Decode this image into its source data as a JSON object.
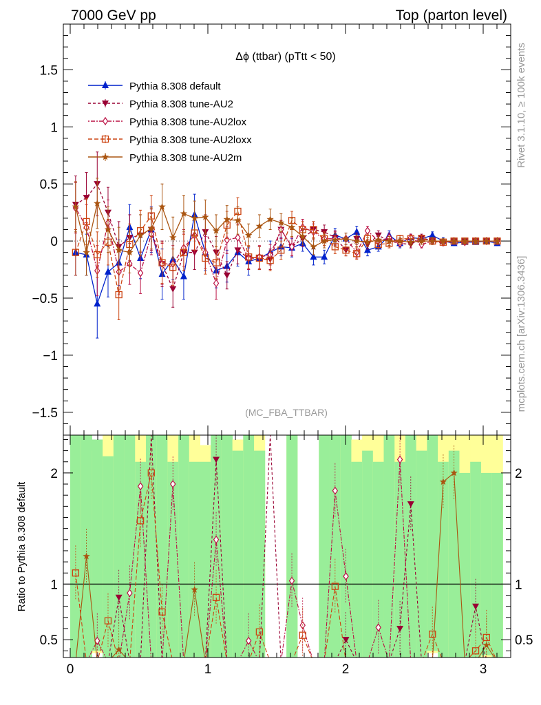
{
  "header": {
    "left": "7000 GeV pp",
    "right": "Top (parton level)"
  },
  "side_labels": {
    "rivet": "Rivet 3.1.10, ≥ 100k events",
    "mcplots": "mcplots.cern.ch [arXiv:1306.3436]"
  },
  "colors": {
    "default": "#0022cc",
    "au2": "#990033",
    "au2lox": "#bb1144",
    "au2loxx": "#cc4411",
    "au2m": "#aa5511",
    "band_yellow": "#ffff99",
    "band_green": "#99ee99"
  },
  "chart_data": [
    {
      "type": "line",
      "title": "Δϕ (ttbar) (pTtt < 50)",
      "watermark": "(MC_FBA_TTBAR)",
      "xlim": [
        -0.05,
        3.2
      ],
      "ylim": [
        -1.7,
        1.9
      ],
      "yticks": [
        -1.5,
        -1,
        -0.5,
        0,
        0.5,
        1,
        1.5
      ],
      "ytick_labels": [
        "−1.5",
        "−1",
        "−0.5",
        "0",
        "0.5",
        "1",
        "1.5"
      ],
      "x": [
        0.0393,
        0.1178,
        0.1963,
        0.2749,
        0.3534,
        0.432,
        0.5105,
        0.589,
        0.6676,
        0.7461,
        0.8247,
        0.9032,
        0.9817,
        1.0603,
        1.1388,
        1.2174,
        1.2959,
        1.3744,
        1.453,
        1.5315,
        1.6101,
        1.6886,
        1.7671,
        1.8457,
        1.9242,
        2.0028,
        2.0813,
        2.1598,
        2.2384,
        2.3169,
        2.3955,
        2.474,
        2.5525,
        2.6311,
        2.7096,
        2.7882,
        2.8667,
        2.9452,
        3.0238,
        3.1023
      ],
      "series": [
        {
          "name": "Pythia 8.308 default",
          "marker": "triangle-up",
          "color": "#0022cc",
          "dash": "",
          "values": [
            -0.1,
            -0.12,
            -0.55,
            -0.27,
            -0.19,
            0.12,
            -0.15,
            0.1,
            -0.29,
            -0.16,
            -0.31,
            0.23,
            -0.1,
            -0.26,
            -0.22,
            -0.1,
            -0.18,
            -0.15,
            -0.1,
            -0.05,
            -0.06,
            -0.02,
            -0.14,
            -0.14,
            0.05,
            0.02,
            0.08,
            -0.08,
            -0.05,
            0.05,
            -0.02,
            0.03,
            0.02,
            0.05,
            0.0,
            -0.02,
            -0.01,
            -0.01,
            0.0,
            -0.02
          ],
          "errors": [
            0.2,
            0.18,
            0.3,
            0.22,
            0.2,
            0.2,
            0.18,
            0.2,
            0.22,
            0.18,
            0.2,
            0.18,
            0.16,
            0.15,
            0.14,
            0.12,
            0.12,
            0.1,
            0.1,
            0.08,
            0.08,
            0.07,
            0.07,
            0.06,
            0.06,
            0.05,
            0.05,
            0.05,
            0.04,
            0.04,
            0.04,
            0.03,
            0.03,
            0.03,
            0.03,
            0.02,
            0.02,
            0.02,
            0.02,
            0.02
          ]
        },
        {
          "name": "Pythia 8.308 tune-AU2",
          "marker": "triangle-down",
          "color": "#990033",
          "dash": "4,3",
          "values": [
            0.32,
            0.38,
            0.5,
            0.25,
            -0.05,
            0.03,
            0.05,
            0.1,
            -0.2,
            -0.42,
            -0.1,
            -0.1,
            0.08,
            -0.1,
            -0.3,
            -0.08,
            -0.15,
            -0.15,
            -0.16,
            0.1,
            -0.05,
            0.02,
            0.1,
            0.08,
            0.03,
            -0.08,
            0.02,
            -0.03,
            0.05,
            0.0,
            -0.02,
            -0.03,
            0.03,
            0.0,
            -0.02,
            0.0,
            0.0,
            0.0,
            0.0,
            0.0
          ],
          "errors": [
            0.25,
            0.22,
            0.28,
            0.22,
            0.22,
            0.2,
            0.18,
            0.18,
            0.2,
            0.16,
            0.16,
            0.15,
            0.15,
            0.14,
            0.12,
            0.12,
            0.1,
            0.1,
            0.09,
            0.08,
            0.08,
            0.07,
            0.07,
            0.06,
            0.06,
            0.05,
            0.05,
            0.04,
            0.04,
            0.04,
            0.03,
            0.03,
            0.03,
            0.03,
            0.02,
            0.02,
            0.02,
            0.02,
            0.02,
            0.02
          ]
        },
        {
          "name": "Pythia 8.308 tune-AU2lox",
          "marker": "diamond-open",
          "color": "#bb1144",
          "dash": "2,2,6,2",
          "values": [
            0.29,
            0.12,
            -0.26,
            0.16,
            -0.27,
            -0.2,
            -0.28,
            0.06,
            -0.2,
            -0.2,
            -0.06,
            0.05,
            -0.1,
            -0.37,
            0.01,
            0.03,
            -0.15,
            -0.14,
            -0.12,
            0.1,
            -0.05,
            0.12,
            0.08,
            0.02,
            0.02,
            0.02,
            -0.1,
            0.09,
            0.0,
            0.03,
            -0.02,
            0.03,
            -0.03,
            0.0,
            -0.01,
            0.0,
            -0.01,
            0.0,
            0.0,
            0.0
          ],
          "errors": [
            0.22,
            0.2,
            0.22,
            0.2,
            0.2,
            0.18,
            0.18,
            0.18,
            0.18,
            0.16,
            0.16,
            0.15,
            0.14,
            0.14,
            0.12,
            0.12,
            0.1,
            0.1,
            0.09,
            0.08,
            0.08,
            0.07,
            0.07,
            0.06,
            0.06,
            0.05,
            0.05,
            0.04,
            0.04,
            0.04,
            0.03,
            0.03,
            0.03,
            0.03,
            0.02,
            0.02,
            0.02,
            0.02,
            0.02,
            0.02
          ]
        },
        {
          "name": "Pythia 8.308 tune-AU2loxx",
          "marker": "square-open",
          "color": "#cc4411",
          "dash": "6,3",
          "values": [
            -0.1,
            0.17,
            -0.12,
            -0.01,
            -0.47,
            -0.03,
            0.09,
            0.22,
            -0.19,
            -0.23,
            -0.1,
            0.07,
            -0.15,
            -0.19,
            0.14,
            0.26,
            -0.14,
            -0.15,
            -0.17,
            -0.08,
            0.18,
            0.1,
            0.1,
            0.02,
            -0.05,
            -0.08,
            -0.11,
            0.02,
            -0.03,
            -0.02,
            0.02,
            0.02,
            0.02,
            0.0,
            -0.01,
            0.0,
            0.0,
            0.0,
            0.0,
            0.0
          ],
          "errors": [
            0.2,
            0.2,
            0.2,
            0.2,
            0.22,
            0.18,
            0.18,
            0.18,
            0.18,
            0.16,
            0.16,
            0.15,
            0.14,
            0.14,
            0.12,
            0.12,
            0.1,
            0.1,
            0.09,
            0.08,
            0.08,
            0.07,
            0.07,
            0.06,
            0.06,
            0.05,
            0.05,
            0.04,
            0.04,
            0.04,
            0.03,
            0.03,
            0.03,
            0.03,
            0.02,
            0.02,
            0.02,
            0.02,
            0.02,
            0.02
          ]
        },
        {
          "name": "Pythia 8.308 tune-AU2m",
          "marker": "star",
          "color": "#aa5511",
          "dash": "",
          "values": [
            0.3,
            -0.1,
            0.33,
            0.1,
            -0.08,
            -0.1,
            0.05,
            0.11,
            0.3,
            0.03,
            0.24,
            0.2,
            0.21,
            0.09,
            0.19,
            0.18,
            0.05,
            0.13,
            0.19,
            0.16,
            0.12,
            0.04,
            -0.05,
            0.0,
            0.01,
            0.02,
            0.0,
            -0.01,
            0.01,
            0.0,
            0.0,
            -0.01,
            0.0,
            0.0,
            0.0,
            0.0,
            0.0,
            0.0,
            0.0,
            0.0
          ],
          "errors": [
            0.22,
            0.2,
            0.22,
            0.2,
            0.2,
            0.18,
            0.18,
            0.18,
            0.2,
            0.18,
            0.16,
            0.15,
            0.15,
            0.14,
            0.12,
            0.12,
            0.1,
            0.1,
            0.09,
            0.08,
            0.08,
            0.07,
            0.07,
            0.06,
            0.06,
            0.05,
            0.05,
            0.04,
            0.04,
            0.04,
            0.03,
            0.03,
            0.03,
            0.03,
            0.02,
            0.02,
            0.02,
            0.02,
            0.02,
            0.02
          ]
        }
      ]
    },
    {
      "type": "line",
      "ylabel": "Ratio to Pythia 8.308 default",
      "xlim": [
        -0.05,
        3.2
      ],
      "ylim": [
        0.34,
        2.34
      ],
      "xticks": [
        0,
        1,
        2,
        3
      ],
      "xtick_labels": [
        "0",
        "1",
        "2",
        "3"
      ],
      "yticks": [
        0.5,
        1,
        2
      ],
      "ytick_labels": [
        "0.5",
        "1",
        "2"
      ],
      "reference_line": 1,
      "bands": {
        "yellow_upper": [
          2.34,
          2.34,
          2.2,
          2.34,
          2.34,
          2.34,
          2.34,
          2.34,
          2.34,
          2.34,
          2.34,
          2.34,
          2.25,
          2.34,
          2.34,
          2.3,
          2.34,
          2.34,
          null,
          null,
          2.34,
          null,
          null,
          2.34,
          2.34,
          2.34,
          2.3,
          2.34,
          2.34,
          2.34,
          2.34,
          2.34,
          2.34,
          2.34,
          2.34,
          2.34,
          2.34,
          2.34,
          2.34,
          2.34
        ],
        "yellow_lower": [
          0.34,
          0.34,
          0.38,
          0.34,
          0.34,
          0.34,
          0.34,
          0.34,
          0.34,
          0.34,
          0.34,
          0.34,
          0.34,
          0.34,
          0.34,
          0.34,
          0.34,
          0.34,
          null,
          null,
          0.34,
          null,
          null,
          0.34,
          0.34,
          0.34,
          0.34,
          0.34,
          0.34,
          0.34,
          0.34,
          0.34,
          0.34,
          0.38,
          0.34,
          0.34,
          0.34,
          0.34,
          0.34,
          0.34
        ],
        "green_upper": [
          2.34,
          2.34,
          2.3,
          2.15,
          2.34,
          2.34,
          2.1,
          2.34,
          2.34,
          2.1,
          2.34,
          2.1,
          2.1,
          2.34,
          2.34,
          2.2,
          2.34,
          2.2,
          null,
          null,
          2.34,
          null,
          null,
          2.34,
          2.34,
          2.34,
          2.1,
          2.2,
          2.1,
          2.34,
          2.1,
          2.34,
          2.2,
          2.34,
          2.1,
          2.2,
          2.0,
          2.1,
          2.0,
          2.0
        ],
        "green_lower": [
          0.34,
          0.34,
          0.4,
          0.34,
          0.34,
          0.34,
          0.34,
          0.34,
          0.34,
          0.34,
          0.34,
          0.34,
          0.34,
          0.34,
          0.34,
          0.34,
          0.34,
          0.34,
          null,
          null,
          0.34,
          null,
          null,
          0.34,
          0.34,
          0.34,
          0.34,
          0.34,
          0.34,
          0.34,
          0.34,
          0.34,
          0.34,
          0.4,
          0.34,
          0.34,
          0.34,
          0.34,
          0.36,
          0.34
        ]
      },
      "series": [
        {
          "name": "Pythia 8.308 tune-AU2",
          "values": [
            0.3,
            0.3,
            0.3,
            0.3,
            0.88,
            0.3,
            0.3,
            2.34,
            0.3,
            0.3,
            0.3,
            0.3,
            0.3,
            2.12,
            0.3,
            0.3,
            0.3,
            0.3,
            2.34,
            0.3,
            0.3,
            0.3,
            0.3,
            0.3,
            0.3,
            0.5,
            0.3,
            0.3,
            0.3,
            0.3,
            0.6,
            1.72,
            0.3,
            0.3,
            0.3,
            0.3,
            0.3,
            0.8,
            0.3,
            0.3
          ]
        },
        {
          "name": "Pythia 8.308 tune-AU2lox",
          "values": [
            0.3,
            0.3,
            0.49,
            0.3,
            0.3,
            0.92,
            1.88,
            0.3,
            0.3,
            1.9,
            0.3,
            0.3,
            0.3,
            1.4,
            0.3,
            0.3,
            0.49,
            0.3,
            0.3,
            0.3,
            1.03,
            0.63,
            0.3,
            0.3,
            1.84,
            1.07,
            0.3,
            0.3,
            0.61,
            0.3,
            2.12,
            0.3,
            0.3,
            0.3,
            0.3,
            0.3,
            0.3,
            0.3,
            0.3,
            0.3
          ]
        },
        {
          "name": "Pythia 8.308 tune-AU2loxx",
          "values": [
            1.1,
            0.3,
            0.3,
            0.67,
            0.3,
            0.3,
            1.57,
            2.0,
            0.75,
            0.3,
            0.3,
            0.3,
            0.3,
            0.88,
            0.3,
            0.3,
            0.3,
            0.57,
            0.3,
            0.3,
            0.3,
            0.54,
            0.3,
            0.3,
            0.98,
            0.3,
            0.3,
            0.3,
            0.3,
            0.3,
            0.3,
            0.3,
            0.3,
            0.55,
            0.3,
            0.3,
            0.3,
            0.4,
            0.52,
            0.3
          ]
        },
        {
          "name": "Pythia 8.308 tune-AU2m",
          "values": [
            0.3,
            1.25,
            0.3,
            0.3,
            0.41,
            0.3,
            0.3,
            0.3,
            0.3,
            0.3,
            0.3,
            0.95,
            0.3,
            0.3,
            0.3,
            0.3,
            0.3,
            0.3,
            0.3,
            0.3,
            0.3,
            0.3,
            0.3,
            0.3,
            0.3,
            0.3,
            0.3,
            0.3,
            0.3,
            0.3,
            0.3,
            0.3,
            0.3,
            0.3,
            1.92,
            2.0,
            0.3,
            0.3,
            0.45,
            0.3
          ]
        }
      ]
    }
  ]
}
